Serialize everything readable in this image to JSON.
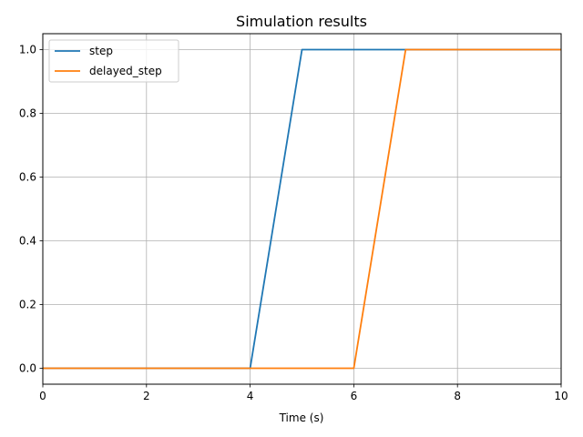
{
  "chart_data": {
    "type": "line",
    "title": "Simulation results",
    "xlabel": "Time (s)",
    "ylabel": "",
    "xlim": [
      0,
      10
    ],
    "ylim": [
      -0.05,
      1.05
    ],
    "xticks": [
      0,
      2,
      4,
      6,
      8,
      10
    ],
    "yticks": [
      0.0,
      0.2,
      0.4,
      0.6,
      0.8,
      1.0
    ],
    "xtick_labels": [
      "0",
      "2",
      "4",
      "6",
      "8",
      "10"
    ],
    "ytick_labels": [
      "0.0",
      "0.2",
      "0.4",
      "0.6",
      "0.8",
      "1.0"
    ],
    "grid": true,
    "legend_position": "top-left",
    "series": [
      {
        "name": "step",
        "color": "#1f77b4",
        "x": [
          0,
          4,
          5,
          10
        ],
        "y": [
          0,
          0,
          1,
          1
        ]
      },
      {
        "name": "delayed_step",
        "color": "#ff7f0e",
        "x": [
          0,
          6,
          7,
          10
        ],
        "y": [
          0,
          0,
          1,
          1
        ]
      }
    ]
  }
}
